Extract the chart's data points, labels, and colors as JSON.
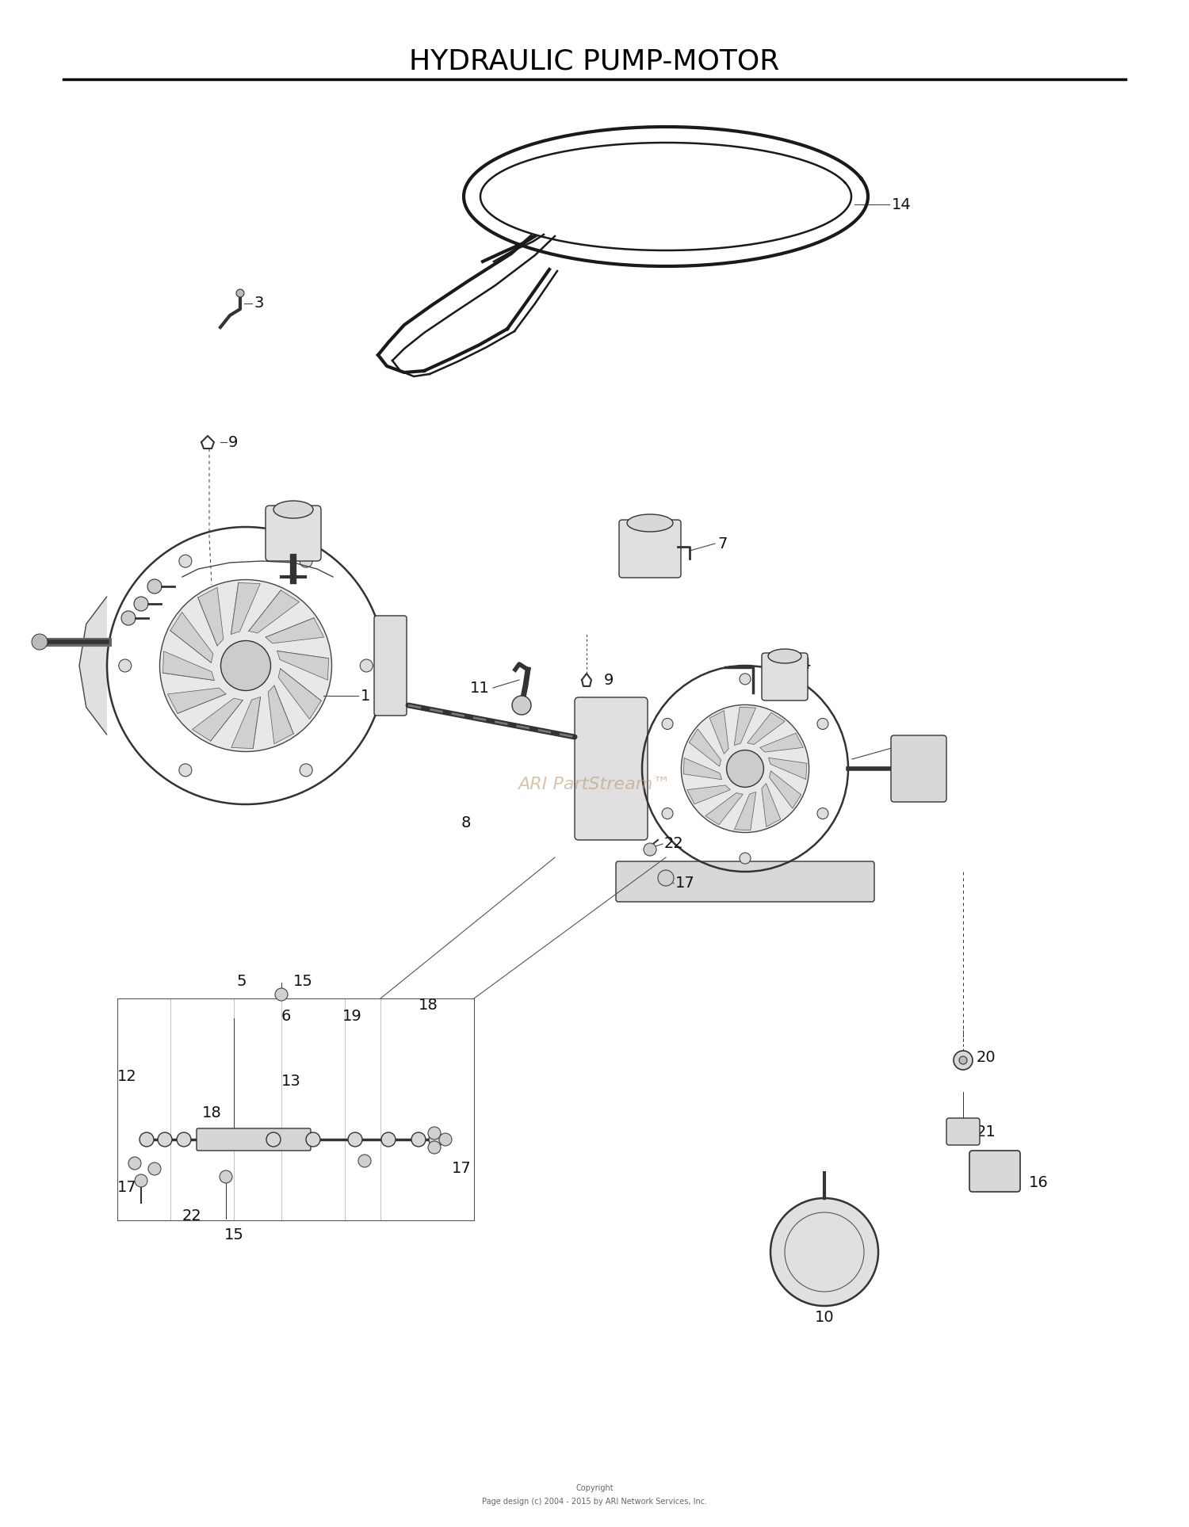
{
  "title": "HYDRAULIC PUMP-MOTOR",
  "title_fontsize": 26,
  "background_color": "#ffffff",
  "line_color": "#000000",
  "watermark": "ARI PartStream™",
  "watermark_color": "#b8956a",
  "watermark_alpha": 0.55,
  "watermark_fontsize": 16,
  "copyright_line1": "Copyright",
  "copyright_line2": "Page design (c) 2004 - 2015 by ARI Network Services, Inc.",
  "copyright_fontsize": 7,
  "fig_width": 15.0,
  "fig_height": 19.27,
  "dpi": 100
}
